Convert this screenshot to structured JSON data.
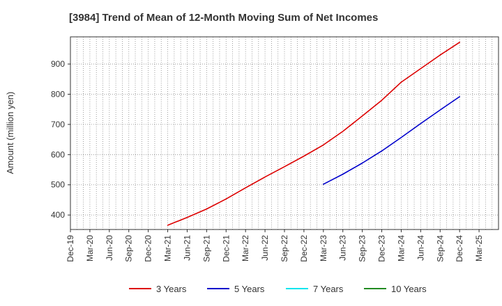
{
  "chart_data": {
    "type": "line",
    "title": "[3984]  Trend of Mean of 12-Month Moving Sum of Net Incomes",
    "xlabel": "",
    "ylabel": "Amount (million yen)",
    "x_ticks": [
      "Dec-19",
      "Mar-20",
      "Jun-20",
      "Sep-20",
      "Dec-20",
      "Mar-21",
      "Jun-21",
      "Sep-21",
      "Dec-21",
      "Mar-22",
      "Jun-22",
      "Sep-22",
      "Dec-22",
      "Mar-23",
      "Jun-23",
      "Sep-23",
      "Dec-23",
      "Mar-24",
      "Jun-24",
      "Sep-24",
      "Dec-24",
      "Mar-25"
    ],
    "y_ticks": [
      400,
      500,
      600,
      700,
      800,
      900
    ],
    "ylim": [
      352,
      990
    ],
    "grid": true,
    "legend_position": "bottom",
    "series": [
      {
        "name": "3 Years",
        "color": "#dd0000",
        "points": [
          [
            "Mar-21",
            366
          ],
          [
            "Jun-21",
            392
          ],
          [
            "Sep-21",
            420
          ],
          [
            "Dec-21",
            453
          ],
          [
            "Mar-22",
            490
          ],
          [
            "Jun-22",
            526
          ],
          [
            "Sep-22",
            560
          ],
          [
            "Dec-22",
            595
          ],
          [
            "Mar-23",
            632
          ],
          [
            "Jun-23",
            677
          ],
          [
            "Sep-23",
            728
          ],
          [
            "Dec-23",
            780
          ],
          [
            "Mar-24",
            840
          ],
          [
            "Jun-24",
            885
          ],
          [
            "Sep-24",
            930
          ],
          [
            "Dec-24",
            972
          ]
        ]
      },
      {
        "name": "5 Years",
        "color": "#0000cc",
        "points": [
          [
            "Mar-23",
            502
          ],
          [
            "Jun-23",
            535
          ],
          [
            "Sep-23",
            572
          ],
          [
            "Dec-23",
            612
          ],
          [
            "Mar-24",
            657
          ],
          [
            "Jun-24",
            703
          ],
          [
            "Sep-24",
            748
          ],
          [
            "Dec-24",
            792
          ]
        ]
      },
      {
        "name": "7 Years",
        "color": "#00e5ee",
        "points": []
      },
      {
        "name": "10 Years",
        "color": "#228b22",
        "points": []
      }
    ]
  }
}
